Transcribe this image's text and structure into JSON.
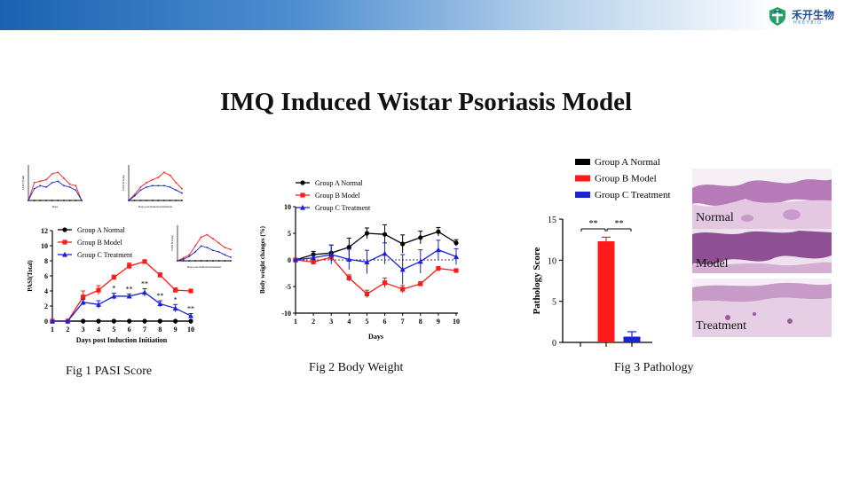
{
  "header": {
    "logo_cn": "禾开生物",
    "logo_en": "HKEYBIO",
    "title": "IMQ Induced Wistar Psoriasis Model"
  },
  "captions": {
    "fig1": "Fig 1  PASI Score",
    "fig2": "Fig 2 Body Weight",
    "fig3": "Fig 3 Pathology"
  },
  "histology": {
    "labels": [
      "Normal",
      "Model",
      "Treatment"
    ]
  },
  "colors": {
    "normal": "#000000",
    "model": "#ff1a1a",
    "treatment": "#1a22d6"
  },
  "chart_data": [
    {
      "id": "fig1",
      "type": "line",
      "title": "",
      "xlabel": "Days post Induction Initiation",
      "ylabel": "PASI(Total)",
      "x": [
        1,
        2,
        3,
        4,
        5,
        6,
        7,
        8,
        9,
        10
      ],
      "xlim": [
        1,
        10
      ],
      "ylim": [
        0,
        12
      ],
      "yticks": [
        0,
        2,
        4,
        6,
        8,
        10,
        12
      ],
      "series": [
        {
          "name": "Group A Normal",
          "color": "#000000",
          "marker": "circle",
          "values": [
            0,
            0,
            0,
            0,
            0,
            0,
            0,
            0,
            0,
            0
          ],
          "err": [
            0,
            0,
            0,
            0,
            0,
            0,
            0,
            0,
            0,
            0
          ]
        },
        {
          "name": "Group B Model",
          "color": "#ff1a1a",
          "marker": "square",
          "values": [
            0,
            0,
            3.2,
            4.1,
            5.8,
            7.3,
            7.9,
            6.1,
            4.1,
            4.0
          ],
          "err": [
            0,
            0,
            0.8,
            0.6,
            0.3,
            0.4,
            0.2,
            0.3,
            0.3,
            0.2
          ]
        },
        {
          "name": "Group C Treatment",
          "color": "#1a22d6",
          "marker": "triangle",
          "values": [
            0,
            0,
            2.5,
            2.2,
            3.3,
            3.3,
            3.8,
            2.3,
            1.7,
            0.7
          ],
          "err": [
            0,
            0,
            0.4,
            0.5,
            0.4,
            0.3,
            0.5,
            0.4,
            0.5,
            0.3
          ]
        }
      ],
      "annotations": [
        {
          "x": 5,
          "text": "*"
        },
        {
          "x": 6,
          "text": "**"
        },
        {
          "x": 7,
          "text": "**"
        },
        {
          "x": 8,
          "text": "**"
        },
        {
          "x": 9,
          "text": "*"
        },
        {
          "x": 10,
          "text": "**"
        }
      ]
    },
    {
      "id": "fig2",
      "type": "line",
      "title": "",
      "xlabel": "Days",
      "ylabel": "Body weight changes (%)",
      "x": [
        1,
        2,
        3,
        4,
        5,
        6,
        7,
        8,
        9,
        10
      ],
      "xlim": [
        1,
        10
      ],
      "ylim": [
        -10,
        10
      ],
      "yticks": [
        -10,
        -5,
        0,
        5,
        10
      ],
      "series": [
        {
          "name": "Group A Normal",
          "color": "#000000",
          "marker": "circle",
          "values": [
            0,
            1.0,
            1.3,
            2.4,
            5.0,
            4.8,
            3.0,
            4.2,
            5.3,
            3.2
          ],
          "err": [
            0,
            0.6,
            1.5,
            1.7,
            1.0,
            1.8,
            1.7,
            1.2,
            0.8,
            0.6
          ]
        },
        {
          "name": "Group B Model",
          "color": "#ff1a1a",
          "marker": "square",
          "values": [
            0,
            -0.4,
            0.5,
            -3.4,
            -6.4,
            -4.3,
            -5.5,
            -4.5,
            -1.6,
            -2.0
          ],
          "err": [
            0,
            0.3,
            0.4,
            0.6,
            0.7,
            0.9,
            0.7,
            0.4,
            0.3,
            0.3
          ]
        },
        {
          "name": "Group C Treatment",
          "color": "#1a22d6",
          "marker": "triangle",
          "values": [
            0,
            0.4,
            1.0,
            0.1,
            -0.4,
            1.2,
            -1.8,
            -0.3,
            1.9,
            0.6
          ],
          "err": [
            0,
            0.5,
            1.8,
            1.9,
            2.2,
            2.0,
            2.8,
            2.2,
            1.8,
            1.5
          ]
        }
      ]
    },
    {
      "id": "fig3",
      "type": "bar",
      "title": "",
      "xlabel": "",
      "ylabel": "Pathology Score",
      "categories": [
        "Group A Normal",
        "Group B Model",
        "Group C Treatment"
      ],
      "values": [
        0,
        12.3,
        0.7
      ],
      "err": [
        0,
        0.5,
        0.6
      ],
      "colors": [
        "#000000",
        "#ff1a1a",
        "#1a22d6"
      ],
      "ylim": [
        0,
        15
      ],
      "yticks": [
        0,
        5,
        10,
        15
      ],
      "significance": [
        {
          "from": 0,
          "to": 1,
          "text": "**"
        },
        {
          "from": 1,
          "to": 2,
          "text": "**"
        }
      ]
    },
    {
      "id": "thumb1",
      "type": "line",
      "title": "",
      "xlabel": "Days",
      "ylabel": "PASI (Total)",
      "x": [
        1,
        2,
        3,
        4,
        5,
        6,
        7,
        8,
        9,
        10
      ],
      "ylim": [
        0,
        12
      ],
      "series": [
        {
          "name": "Group A Normal",
          "color": "#000000",
          "values": [
            0,
            0,
            0,
            0,
            0,
            0,
            0,
            0,
            0,
            0
          ]
        },
        {
          "name": "Group B Model",
          "color": "#ff1a1a",
          "values": [
            0,
            6,
            6.5,
            7,
            9,
            9.5,
            7.5,
            5.5,
            5,
            0
          ]
        },
        {
          "name": "Group C Treatment",
          "color": "#1a22d6",
          "values": [
            0,
            4,
            5,
            4.5,
            6,
            6.5,
            5,
            4.5,
            3.5,
            0
          ]
        }
      ]
    },
    {
      "id": "thumb2",
      "type": "line",
      "title": "",
      "xlabel": "Days post Induction Initiation",
      "ylabel": "PASI Scoring",
      "x": [
        1,
        2,
        3,
        4,
        5,
        6,
        7,
        8,
        9,
        10
      ],
      "ylim": [
        0,
        12
      ],
      "series": [
        {
          "name": "Group A Normal",
          "color": "#000000",
          "values": [
            0,
            0,
            0,
            0,
            0,
            0,
            0,
            0,
            0,
            0
          ]
        },
        {
          "name": "Group B Model",
          "color": "#ff1a1a",
          "values": [
            0,
            2,
            4.5,
            6,
            7,
            7.8,
            9.5,
            8.5,
            6,
            4
          ]
        },
        {
          "name": "Group C Treatment",
          "color": "#1a22d6",
          "values": [
            0,
            1.5,
            3.5,
            4.5,
            5,
            5,
            5,
            4.5,
            3.5,
            2.5
          ]
        }
      ]
    },
    {
      "id": "thumb3",
      "type": "line",
      "title": "",
      "xlabel": "Days post Induction Initiation",
      "ylabel": "PASI Scoring",
      "x": [
        1,
        2,
        3,
        4,
        5,
        6,
        7,
        8,
        9,
        10
      ],
      "ylim": [
        0,
        12
      ],
      "series": [
        {
          "name": "Group A Normal",
          "color": "#000000",
          "values": [
            0,
            0,
            0,
            0,
            0,
            0,
            0,
            0,
            0,
            0
          ]
        },
        {
          "name": "Group B Model",
          "color": "#ff1a1a",
          "values": [
            0,
            1,
            2,
            5,
            8,
            8.8,
            7.5,
            6,
            4.5,
            3.8
          ]
        },
        {
          "name": "Group C Treatment",
          "color": "#1a22d6",
          "values": [
            0,
            0.5,
            1.5,
            3,
            5,
            4.5,
            3.5,
            3,
            2,
            1.2
          ]
        }
      ]
    }
  ]
}
